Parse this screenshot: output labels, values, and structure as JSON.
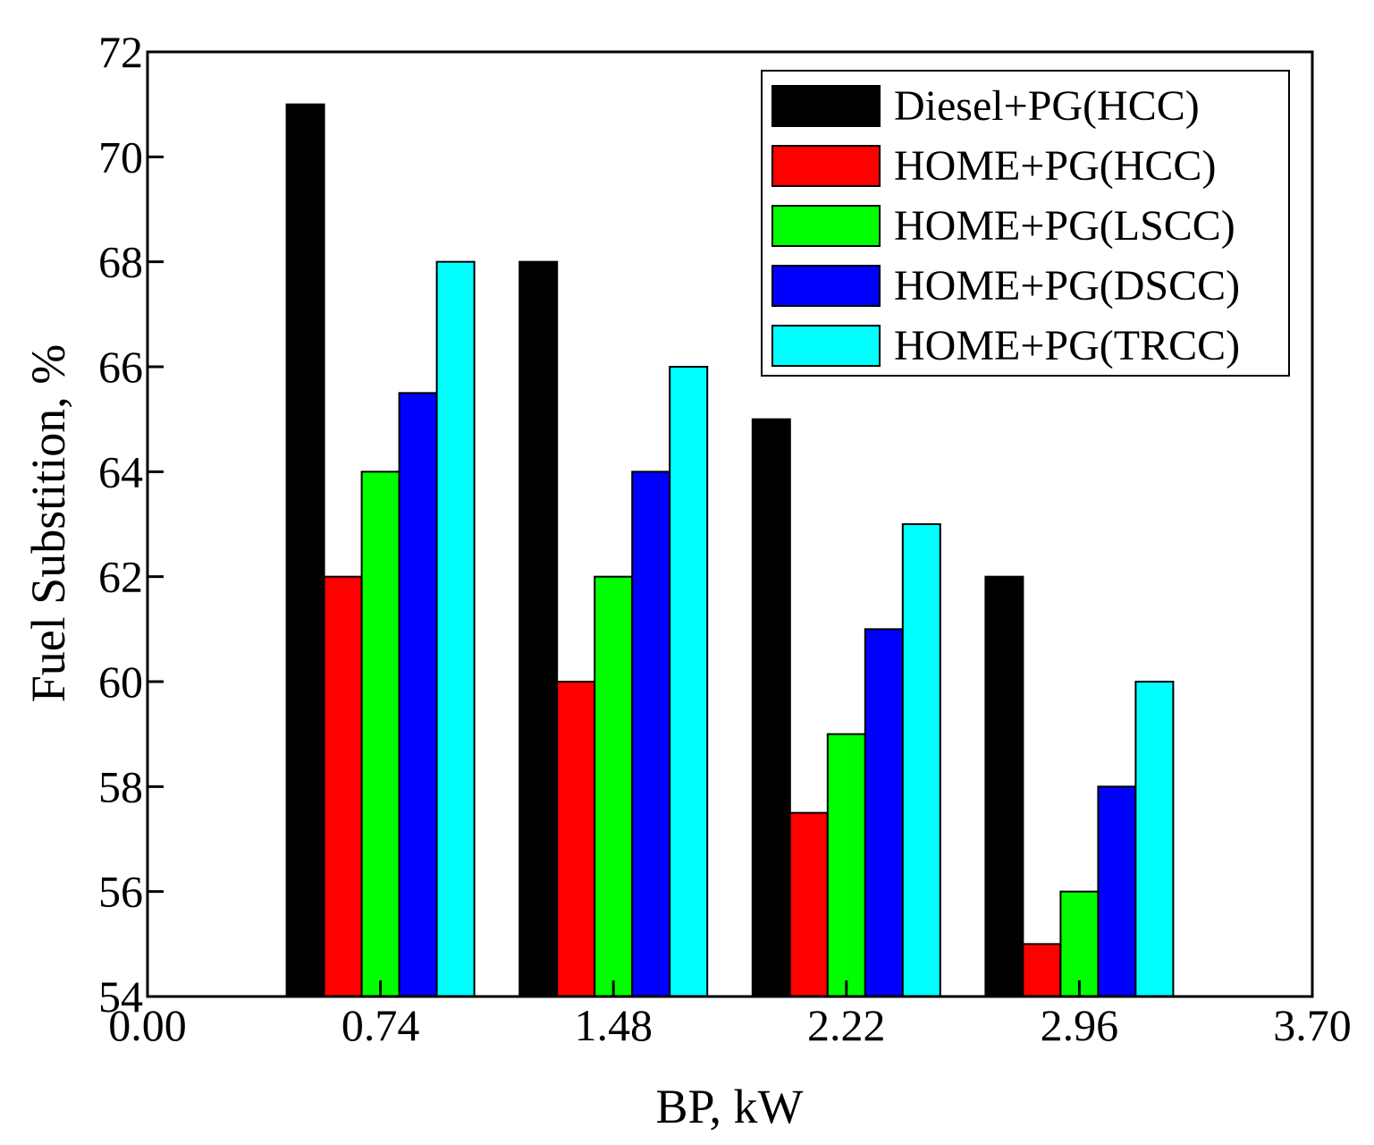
{
  "chart_data": {
    "type": "bar",
    "title": "",
    "xlabel": "BP, kW",
    "ylabel": "Fuel Substition, %",
    "xlim": [
      0.0,
      3.7
    ],
    "ylim": [
      54,
      72
    ],
    "x_ticks": [
      "0.00",
      "0.74",
      "1.48",
      "2.22",
      "2.96",
      "3.70"
    ],
    "y_ticks": [
      "54",
      "56",
      "58",
      "60",
      "62",
      "64",
      "66",
      "68",
      "70",
      "72"
    ],
    "categories": [
      0.74,
      1.48,
      2.22,
      2.96
    ],
    "legend_position": "top-right",
    "grid": false,
    "series": [
      {
        "name": "Diesel+PG(HCC)",
        "color": "#000000",
        "values": [
          71,
          68,
          65,
          62
        ]
      },
      {
        "name": "HOME+PG(HCC)",
        "color": "#ff0000",
        "values": [
          62,
          60,
          57.5,
          55
        ]
      },
      {
        "name": "HOME+PG(LSCC)",
        "color": "#00ff00",
        "values": [
          64,
          62,
          59,
          56
        ]
      },
      {
        "name": "HOME+PG(DSCC)",
        "color": "#0000ff",
        "values": [
          65.5,
          64,
          61,
          58
        ]
      },
      {
        "name": "HOME+PG(TRCC)",
        "color": "#00ffff",
        "values": [
          68,
          66,
          63,
          60
        ]
      }
    ]
  }
}
